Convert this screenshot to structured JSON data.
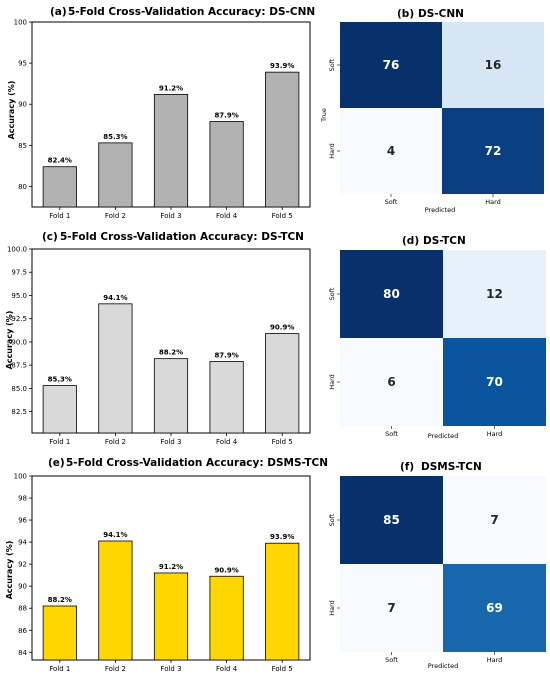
{
  "chart_data": [
    {
      "type": "bar",
      "panel": "(a)",
      "title": "5-Fold Cross-Validation Accuracy: DS-CNN",
      "categories": [
        "Fold 1",
        "Fold 2",
        "Fold 3",
        "Fold 4",
        "Fold 5"
      ],
      "values": [
        82.4,
        85.3,
        91.2,
        87.9,
        93.9
      ],
      "value_labels": [
        "82.4%",
        "85.3%",
        "91.2%",
        "87.9%",
        "93.9%"
      ],
      "ylabel": "Accuracy (%)",
      "ylim": [
        77.5,
        100
      ],
      "yticks": [
        80,
        85,
        90,
        95,
        100
      ],
      "ytick_labels": [
        "80",
        "85",
        "90",
        "95",
        "100"
      ],
      "bar_color": "#b2b2b2"
    },
    {
      "type": "heatmap",
      "panel": "(b)",
      "title": "DS-CNN",
      "row_labels": [
        "Soft",
        "Hard"
      ],
      "col_labels": [
        "Soft",
        "Hard"
      ],
      "values": [
        [
          76,
          16
        ],
        [
          4,
          72
        ]
      ],
      "xlabel": "Predicted",
      "ylabel": "True",
      "colormap": "Blues"
    },
    {
      "type": "bar",
      "panel": "(c)",
      "title": "5-Fold Cross-Validation Accuracy: DS-TCN",
      "categories": [
        "Fold 1",
        "Fold 2",
        "Fold 3",
        "Fold 4",
        "Fold 5"
      ],
      "values": [
        85.3,
        94.1,
        88.2,
        87.9,
        90.9
      ],
      "value_labels": [
        "85.3%",
        "94.1%",
        "88.2%",
        "87.9%",
        "90.9%"
      ],
      "ylabel": "Accuracy (%)",
      "ylim": [
        80.2,
        100
      ],
      "yticks": [
        82.5,
        85.0,
        87.5,
        90.0,
        92.5,
        95.0,
        97.5,
        100.0
      ],
      "ytick_labels": [
        "82.5",
        "85.0",
        "87.5",
        "90.0",
        "92.5",
        "95.0",
        "97.5",
        "100.0"
      ],
      "bar_color": "#d9d9d9"
    },
    {
      "type": "heatmap",
      "panel": "(d)",
      "title": "DS-TCN",
      "row_labels": [
        "Soft",
        "Hard"
      ],
      "col_labels": [
        "Soft",
        "Hard"
      ],
      "values": [
        [
          80,
          12
        ],
        [
          6,
          70
        ]
      ],
      "xlabel": "Predicted",
      "ylabel": "",
      "colormap": "Blues"
    },
    {
      "type": "bar",
      "panel": "(e)",
      "title": "5-Fold Cross-Validation Accuracy: DSMS-TCN",
      "categories": [
        "Fold 1",
        "Fold 2",
        "Fold 3",
        "Fold 4",
        "Fold 5"
      ],
      "values": [
        88.2,
        94.1,
        91.2,
        90.9,
        93.9
      ],
      "value_labels": [
        "88.2%",
        "94.1%",
        "91.2%",
        "90.9%",
        "93.9%"
      ],
      "ylabel": "Accuracy (%)",
      "ylim": [
        83.3,
        100
      ],
      "yticks": [
        84,
        86,
        88,
        90,
        92,
        94,
        96,
        98,
        100
      ],
      "ytick_labels": [
        "84",
        "86",
        "88",
        "90",
        "92",
        "94",
        "96",
        "98",
        "100"
      ],
      "bar_color": "#ffd700"
    },
    {
      "type": "heatmap",
      "panel": "(f)",
      "title": "DSMS-TCN",
      "row_labels": [
        "Soft",
        "Hard"
      ],
      "col_labels": [
        "Soft",
        "Hard"
      ],
      "values": [
        [
          85,
          7
        ],
        [
          7,
          69
        ]
      ],
      "xlabel": "Predicted",
      "ylabel": "",
      "colormap": "Blues"
    }
  ]
}
